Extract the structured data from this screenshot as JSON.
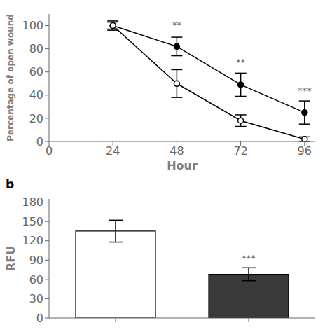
{
  "chart_data": [
    {
      "type": "line",
      "x": [
        24,
        48,
        72,
        96
      ],
      "series": [
        {
          "color": "#000000",
          "marker": "circle",
          "values": [
            100,
            82,
            49,
            25
          ],
          "yerr": [
            4,
            8,
            10,
            10
          ]
        },
        {
          "color": "#000000",
          "marker": "open_circle",
          "values": [
            100,
            50,
            18,
            2
          ],
          "yerr": [
            3,
            12,
            5,
            2
          ]
        }
      ],
      "xlabel": "Hour",
      "ylabel": "Percentage of open wound",
      "xlim": [
        0,
        100
      ],
      "xticks": [
        0,
        24,
        48,
        72,
        96
      ],
      "ylim": [
        0,
        110
      ],
      "yticks": [
        0,
        20,
        40,
        60,
        80,
        100
      ],
      "annotations": [
        {
          "x": 48,
          "y": 95,
          "text": "**"
        },
        {
          "x": 72,
          "y": 63,
          "text": "**"
        },
        {
          "x": 96,
          "y": 38,
          "text": "***"
        }
      ]
    },
    {
      "type": "bar",
      "title": "b",
      "categories": [
        null,
        null
      ],
      "values": [
        135,
        68
      ],
      "yerr": [
        17,
        10
      ],
      "colors": [
        "#ffffff",
        "#3a3a3a"
      ],
      "ylabel": "RFU",
      "ylim": [
        0,
        185
      ],
      "yticks": [
        0,
        30,
        60,
        90,
        120,
        150,
        180
      ],
      "annotations": [
        {
          "y": 83,
          "text": "***"
        }
      ]
    }
  ]
}
